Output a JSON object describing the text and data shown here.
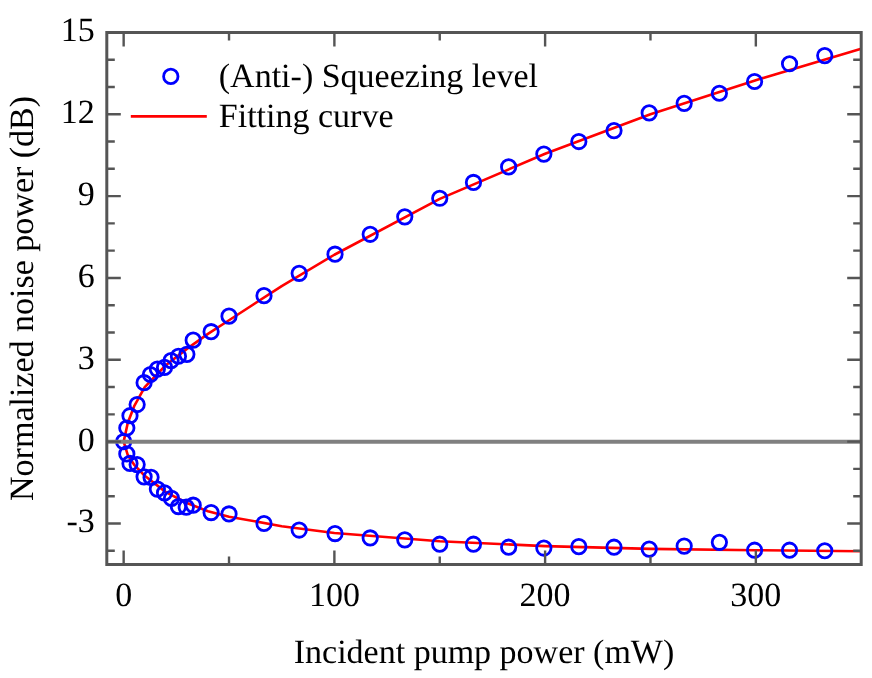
{
  "chart_data": {
    "type": "scatter",
    "xlabel": "Incident pump power (mW)",
    "ylabel": "Normalized noise power (dB)",
    "xlim": [
      -8,
      350
    ],
    "ylim": [
      -4.5,
      15
    ],
    "xticks": [
      0,
      {
        "value": 50,
        "label": null
      },
      100,
      {
        "value": 150,
        "label": null
      },
      200,
      {
        "value": 250,
        "label": null
      },
      300
    ],
    "yticks": [
      {
        "value": -4,
        "label": null
      },
      -3,
      {
        "value": -2,
        "label": null
      },
      {
        "value": -1,
        "label": null
      },
      0,
      {
        "value": 1,
        "label": null
      },
      {
        "value": 2,
        "label": null
      },
      3,
      {
        "value": 4,
        "label": null
      },
      {
        "value": 5,
        "label": null
      },
      6,
      {
        "value": 7,
        "label": null
      },
      {
        "value": 8,
        "label": null
      },
      9,
      {
        "value": 10,
        "label": null
      },
      {
        "value": 11,
        "label": null
      },
      12,
      {
        "value": 13,
        "label": null
      },
      {
        "value": 14,
        "label": null
      },
      15
    ],
    "grid": false,
    "legend": "top left",
    "ref_lines": [
      {
        "axis": "y",
        "value": 0,
        "color": "#808080"
      }
    ],
    "series": [
      {
        "name": "(Anti-) Squeezing level",
        "type": "scatter",
        "marker": "circle",
        "color": "#0000ff",
        "x": [
          0,
          1.5,
          3,
          6.4,
          9.7,
          12.7,
          16,
          19.4,
          22.5,
          26,
          30,
          33,
          41.5,
          50,
          66.6,
          83.3,
          100.3,
          117,
          133.4,
          150,
          166,
          182.7,
          199.4,
          216,
          232.7,
          249.4,
          266,
          282.7,
          299.4,
          316,
          332.7,
          1.5,
          3,
          6.4,
          9.7,
          13,
          16,
          19.4,
          22.7,
          26,
          29.7,
          33,
          41.5,
          50,
          66.6,
          83.3,
          100.3,
          117,
          133.4,
          150,
          166,
          182.7,
          199.4,
          216,
          232.7,
          249.4,
          266,
          282.7,
          299.4,
          316,
          332.7
        ],
        "values": [
          0,
          0.5,
          0.95,
          1.36,
          2.16,
          2.46,
          2.66,
          2.72,
          2.97,
          3.13,
          3.2,
          3.72,
          4.03,
          4.6,
          5.35,
          6.17,
          6.87,
          7.6,
          8.24,
          8.92,
          9.5,
          10.07,
          10.54,
          11.0,
          11.4,
          12.05,
          12.4,
          12.77,
          13.2,
          13.85,
          14.15,
          -0.45,
          -0.8,
          -0.84,
          -1.29,
          -1.31,
          -1.74,
          -1.88,
          -2.08,
          -2.38,
          -2.4,
          -2.33,
          -2.6,
          -2.65,
          -3.0,
          -3.24,
          -3.37,
          -3.53,
          -3.6,
          -3.76,
          -3.76,
          -3.87,
          -3.9,
          -3.85,
          -3.87,
          -3.94,
          -3.83,
          -3.69,
          -3.98,
          -3.98,
          -4.0
        ]
      },
      {
        "name": "Fitting curve",
        "type": "line",
        "marker": "none",
        "color": "#ff0000",
        "x": [
          0,
          2,
          5,
          10,
          20,
          30,
          40,
          50,
          75,
          100,
          150,
          200,
          250,
          300,
          350
        ],
        "values": [
          0,
          0.7,
          1.3,
          2.0,
          2.8,
          3.4,
          3.95,
          4.45,
          5.7,
          6.85,
          8.9,
          10.55,
          12.0,
          13.25,
          14.4
        ]
      },
      {
        "type": "line",
        "marker": "none",
        "color": "#ff0000",
        "x": [
          0,
          2,
          5,
          10,
          20,
          30,
          40,
          50,
          75,
          100,
          150,
          200,
          250,
          300,
          350
        ],
        "values": [
          0,
          -0.5,
          -0.85,
          -1.25,
          -1.85,
          -2.25,
          -2.55,
          -2.75,
          -3.1,
          -3.35,
          -3.65,
          -3.83,
          -3.93,
          -3.98,
          -4.02
        ]
      }
    ]
  }
}
